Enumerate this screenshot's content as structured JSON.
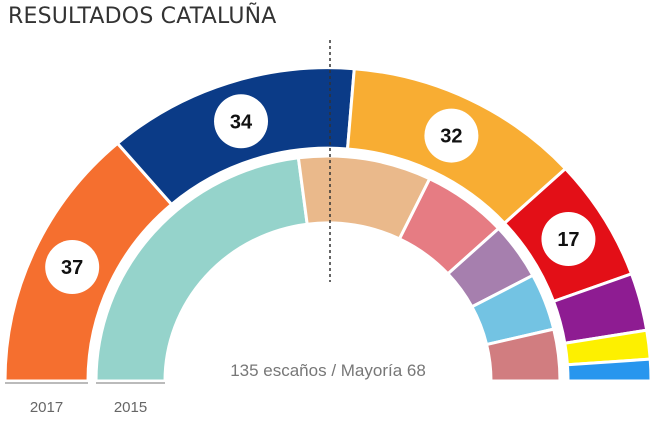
{
  "chart_data": {
    "type": "pie",
    "subtype": "parliament-half-donut",
    "title": "RESULTADOS CATALUÑA",
    "note": "135 escaños / Mayoría 68",
    "total_seats": 135,
    "majority": 68,
    "rings": [
      {
        "name": "2017",
        "label": "2017",
        "segments": [
          {
            "value": 37,
            "color": "#f56f2f",
            "label": "37"
          },
          {
            "value": 34,
            "color": "#0b3b87",
            "label": "34"
          },
          {
            "value": 32,
            "color": "#f8ad33",
            "label": "32"
          },
          {
            "value": 17,
            "color": "#e30f17",
            "label": "17"
          },
          {
            "value": 8,
            "color": "#8e1c92"
          },
          {
            "value": 4,
            "color": "#fdf000"
          },
          {
            "value": 3,
            "color": "#2896ee"
          }
        ]
      },
      {
        "name": "2015",
        "label": "2015",
        "segments": [
          {
            "value": 62,
            "color": "#95d3cb"
          },
          {
            "value": 25,
            "color": "#eab98b"
          },
          {
            "value": 16,
            "color": "#e67c83"
          },
          {
            "value": 11,
            "color": "#a67fae"
          },
          {
            "value": 11,
            "color": "#73c3e3"
          },
          {
            "value": 10,
            "color": "#d17d80"
          }
        ]
      }
    ]
  }
}
